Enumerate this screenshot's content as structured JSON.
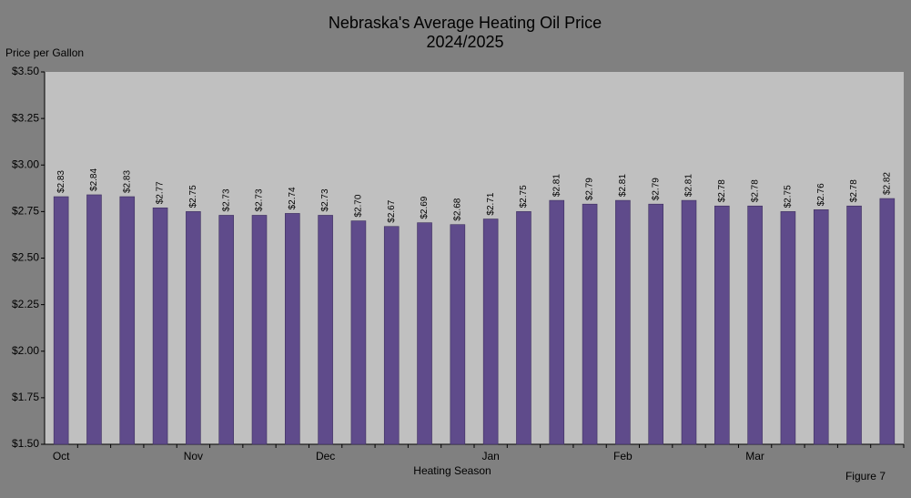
{
  "chart_data": {
    "type": "bar",
    "title": "Nebraska's Average Heating Oil Price",
    "subtitle": "2024/2025",
    "y_label": "Price per Gallon",
    "x_label": "Heating Season",
    "annotation": "Figure 7",
    "categories": [
      "Oct",
      null,
      null,
      null,
      "Nov",
      null,
      null,
      null,
      "Dec",
      null,
      null,
      null,
      null,
      "Jan",
      null,
      null,
      null,
      "Feb",
      null,
      null,
      null,
      "Mar",
      null,
      null,
      null,
      null
    ],
    "values": [
      2.83,
      2.84,
      2.83,
      2.77,
      2.75,
      2.73,
      2.73,
      2.74,
      2.73,
      2.7,
      2.67,
      2.69,
      2.68,
      2.71,
      2.75,
      2.81,
      2.79,
      2.81,
      2.79,
      2.81,
      2.78,
      2.78,
      2.75,
      2.76,
      2.78,
      2.82
    ],
    "value_labels": [
      "$2.83",
      "$2.84",
      "$2.83",
      "$2.77",
      "$2.75",
      "$2.73",
      "$2.73",
      "$2.74",
      "$2.73",
      "$2.70",
      "$2.67",
      "$2.69",
      "$2.68",
      "$2.71",
      "$2.75",
      "$2.81",
      "$2.79",
      "$2.81",
      "$2.79",
      "$2.81",
      "$2.78",
      "$2.78",
      "$2.75",
      "$2.76",
      "$2.78",
      "$2.82"
    ],
    "color": "#5f4b8b",
    "ylim": [
      1.5,
      3.5
    ],
    "yticks": [
      {
        "value": 1.5,
        "label": "$1.50"
      },
      {
        "value": 1.75,
        "label": "$1.75"
      },
      {
        "value": 2,
        "label": "$2.00"
      },
      {
        "value": 2.25,
        "label": "$2.25"
      },
      {
        "value": 2.5,
        "label": "$2.50"
      },
      {
        "value": 2.75,
        "label": "$2.75"
      },
      {
        "value": 3,
        "label": "$3.00"
      },
      {
        "value": 3.25,
        "label": "$3.25"
      },
      {
        "value": 3.5,
        "label": "$3.50"
      }
    ],
    "grid": false
  }
}
